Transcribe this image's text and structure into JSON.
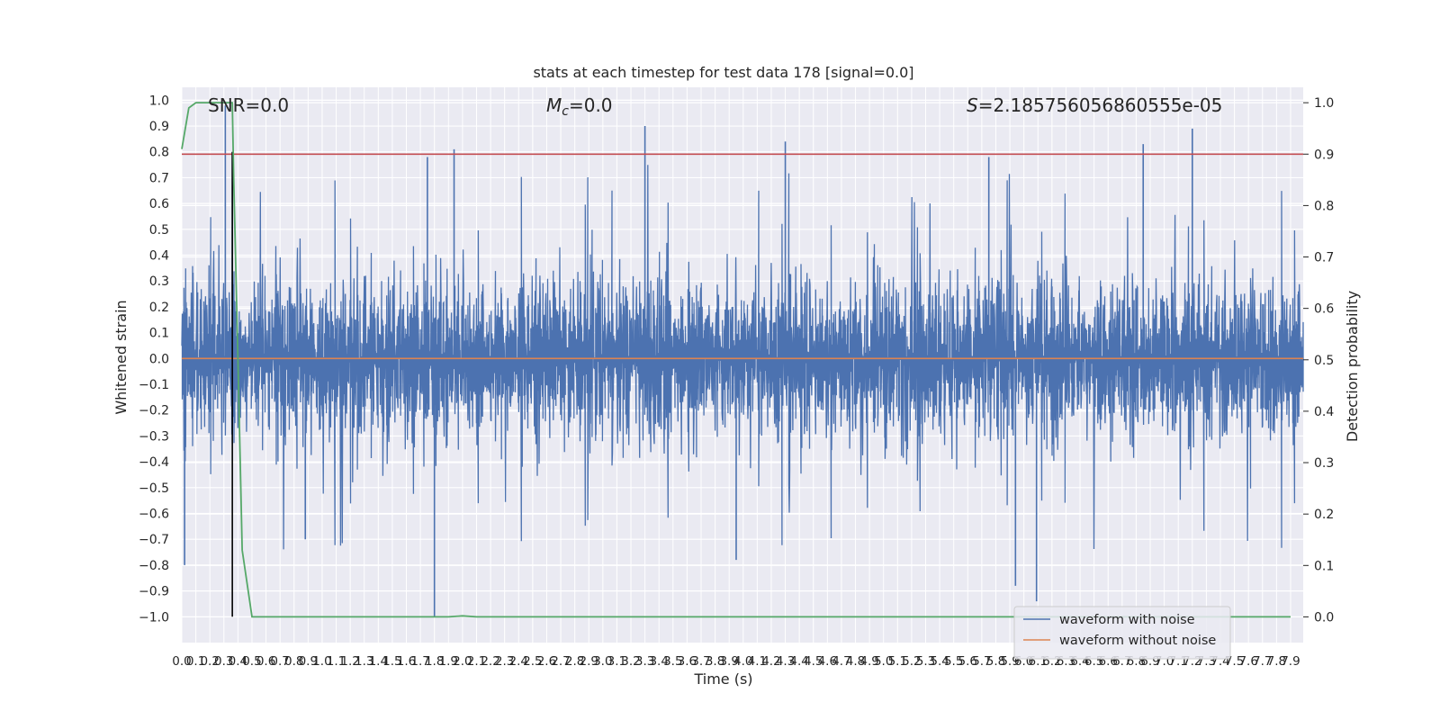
{
  "chart_data": {
    "type": "line",
    "title": "stats at each timestep for test data 178 [signal=0.0]",
    "xlabel": "Time (s)",
    "ylabel_left": "Whitened strain",
    "ylabel_right": "Detection probability",
    "xlim": [
      0.0,
      7.99
    ],
    "ylim_left": [
      -1.1,
      1.05
    ],
    "ylim_right": [
      -0.05,
      1.03
    ],
    "x_ticks": [
      "0.0",
      "0.1",
      "0.2",
      "0.3",
      "0.4",
      "0.5",
      "0.6",
      "0.7",
      "0.8",
      "0.9",
      "1.0",
      "1.1",
      "1.2",
      "1.3",
      "1.4",
      "1.5",
      "1.6",
      "1.7",
      "1.8",
      "1.9",
      "2.0",
      "2.1",
      "2.2",
      "2.3",
      "2.4",
      "2.5",
      "2.6",
      "2.7",
      "2.8",
      "2.9",
      "3.0",
      "3.1",
      "3.2",
      "3.3",
      "3.4",
      "3.5",
      "3.6",
      "3.7",
      "3.8",
      "3.9",
      "4.0",
      "4.1",
      "4.2",
      "4.3",
      "4.4",
      "4.5",
      "4.6",
      "4.7",
      "4.8",
      "4.9",
      "5.0",
      "5.1",
      "5.2",
      "5.3",
      "5.4",
      "5.5",
      "5.6",
      "5.7",
      "5.8",
      "5.9",
      "6.0",
      "6.1",
      "6.2",
      "6.3",
      "6.4",
      "6.5",
      "6.6",
      "6.7",
      "6.8",
      "6.9",
      "7.0",
      "7.1",
      "7.2",
      "7.3",
      "7.4",
      "7.5",
      "7.6",
      "7.7",
      "7.8",
      "7.9"
    ],
    "y_ticks_left": [
      "1.0",
      "0.9",
      "0.8",
      "0.7",
      "0.6",
      "0.5",
      "0.4",
      "0.3",
      "0.2",
      "0.1",
      "0.0",
      "-0.1",
      "-0.2",
      "-0.3",
      "-0.4",
      "-0.5",
      "-0.6",
      "-0.7",
      "-0.8",
      "-0.9",
      "-1.0"
    ],
    "y_ticks_right": [
      "1.0",
      "0.9",
      "0.8",
      "0.7",
      "0.6",
      "0.5",
      "0.4",
      "0.3",
      "0.2",
      "0.1",
      "0.0"
    ],
    "annotations": {
      "snr": "SNR=0.0",
      "mc_symbol": "M",
      "mc_sub": "c",
      "mc_value": "=0.0",
      "s_symbol": "S",
      "s_value": "=2.185756056860555e-05"
    },
    "legend": {
      "position": "lower-right",
      "entries": [
        "waveform with noise",
        "waveform without noise"
      ]
    },
    "series": [
      {
        "name": "waveform with noise",
        "axis": "left",
        "color": "#4c72b0",
        "description_values": "dense noise, envelope approx -0.45..0.45 with spikes",
        "spikes": [
          {
            "x": 0.31,
            "y": 0.98
          },
          {
            "x": 0.36,
            "y": 0.8
          },
          {
            "x": 0.02,
            "y": -0.8
          },
          {
            "x": 1.8,
            "y": -1.0
          },
          {
            "x": 1.94,
            "y": 0.81
          },
          {
            "x": 3.3,
            "y": 0.9
          },
          {
            "x": 4.3,
            "y": 0.84
          },
          {
            "x": 5.94,
            "y": -0.88
          },
          {
            "x": 6.09,
            "y": -0.94
          },
          {
            "x": 6.85,
            "y": 0.83
          },
          {
            "x": 7.2,
            "y": 0.89
          },
          {
            "x": 1.75,
            "y": 0.78
          },
          {
            "x": 5.75,
            "y": 0.78
          },
          {
            "x": 0.88,
            "y": -0.7
          },
          {
            "x": 3.95,
            "y": -0.78
          }
        ]
      },
      {
        "name": "waveform without noise",
        "axis": "left",
        "color": "#dd8452",
        "x": [
          0.0,
          7.99
        ],
        "y": [
          0.0,
          0.0
        ]
      },
      {
        "axis": "right",
        "color": "#55a868",
        "x": [
          0.0,
          0.05,
          0.1,
          0.2,
          0.3,
          0.36,
          0.37,
          0.4,
          0.43,
          0.5,
          1.9,
          2.0,
          2.1,
          7.9
        ],
        "y": [
          0.91,
          0.99,
          1.0,
          1.0,
          1.0,
          1.0,
          0.85,
          0.5,
          0.13,
          0.0,
          0.0,
          0.002,
          0.0,
          0.0
        ]
      },
      {
        "axis": "right",
        "color": "#c44e52",
        "type": "hline",
        "y": 0.9
      },
      {
        "axis": "left",
        "color": "#000000",
        "type": "vline",
        "x": 0.36,
        "y_range": [
          -1.0,
          0.8
        ]
      }
    ]
  }
}
